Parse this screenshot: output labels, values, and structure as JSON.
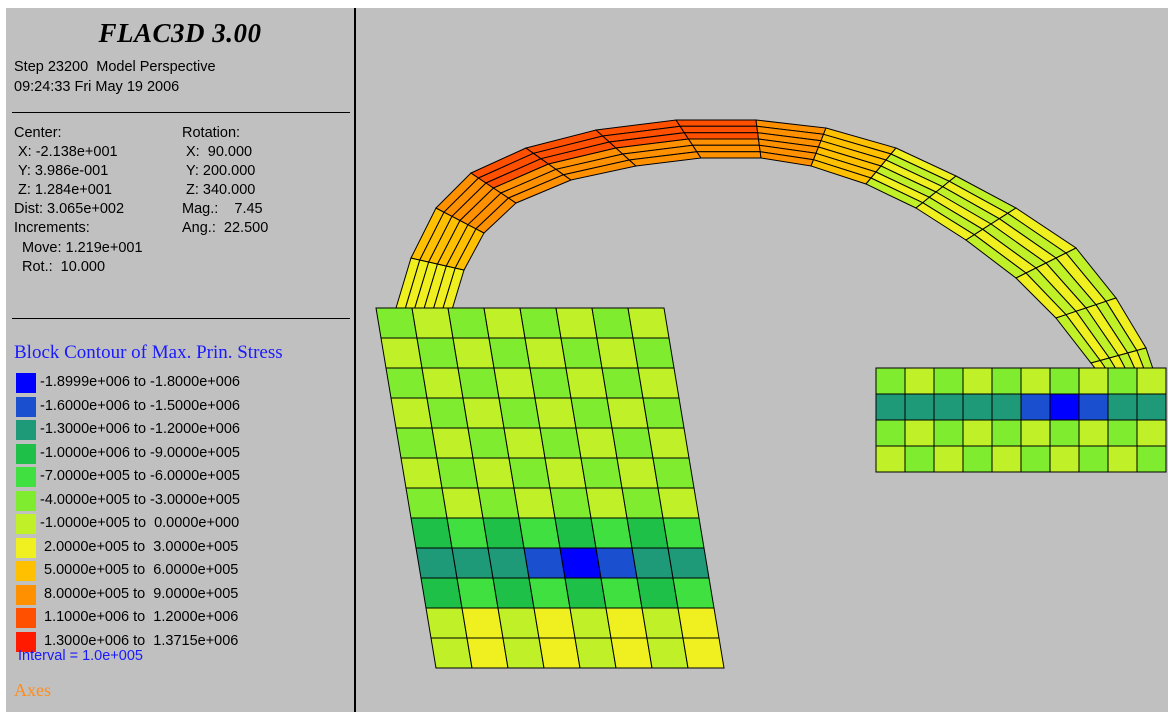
{
  "app": {
    "title": "FLAC3D 3.00",
    "step_line": "Step 23200  Model Perspective",
    "datetime_line": "09:24:33 Fri May 19 2006"
  },
  "view": {
    "center_label": "Center:",
    "center_x": "X: -2.138e+001",
    "center_y": "Y: 3.986e-001",
    "center_z": "Z: 1.284e+001",
    "dist": "Dist: 3.065e+002",
    "increments_label": "Increments:",
    "move": "Move: 1.219e+001",
    "rot": "Rot.:  10.000",
    "rotation_label": "Rotation:",
    "rotation_x": "X:  90.000",
    "rotation_y": "Y: 200.000",
    "rotation_z": "Z: 340.000",
    "mag": "Mag.:    7.45",
    "ang": "Ang.:  22.500"
  },
  "legend": {
    "title": "Block Contour of Max. Prin. Stress",
    "items": [
      {
        "label": "-1.8999e+006 to -1.8000e+006",
        "color": "#0000ff"
      },
      {
        "label": "-1.6000e+006 to -1.5000e+006",
        "color": "#1a50d0"
      },
      {
        "label": "-1.3000e+006 to -1.2000e+006",
        "color": "#1f9a78"
      },
      {
        "label": "-1.0000e+006 to -9.0000e+005",
        "color": "#1fc048"
      },
      {
        "label": "-7.0000e+005 to -6.0000e+005",
        "color": "#40e040"
      },
      {
        "label": "-4.0000e+005 to -3.0000e+005",
        "color": "#80ec30"
      },
      {
        "label": "-1.0000e+005 to  0.0000e+000",
        "color": "#c0f028"
      },
      {
        "label": " 2.0000e+005 to  3.0000e+005",
        "color": "#f0f020"
      },
      {
        "label": " 5.0000e+005 to  6.0000e+005",
        "color": "#ffc000"
      },
      {
        "label": " 8.0000e+005 to  9.0000e+005",
        "color": "#ff9000"
      },
      {
        "label": " 1.1000e+006 to  1.2000e+006",
        "color": "#ff5000"
      },
      {
        "label": " 1.3000e+006 to  1.3715e+006",
        "color": "#ff1a00"
      }
    ],
    "interval": "Interval = 1.0e+005",
    "axes_label": "Axes"
  }
}
